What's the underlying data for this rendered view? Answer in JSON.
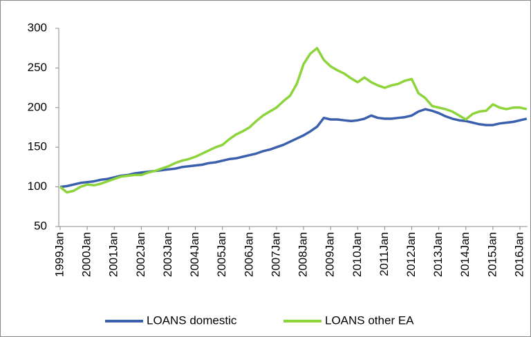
{
  "chart_data": {
    "type": "line",
    "categories": [
      "1999Jan",
      null,
      null,
      null,
      "2000Jan",
      null,
      null,
      null,
      "2001Jan",
      null,
      null,
      null,
      "2002Jan",
      null,
      null,
      null,
      "2003Jan",
      null,
      null,
      null,
      "2004Jan",
      null,
      null,
      null,
      "2005Jan",
      null,
      null,
      null,
      "2006Jan",
      null,
      null,
      null,
      "2007Jan",
      null,
      null,
      null,
      "2008Jan",
      null,
      null,
      null,
      "2009Jan",
      null,
      null,
      null,
      "2010Jan",
      null,
      null,
      null,
      "2011Jan",
      null,
      null,
      null,
      "2012Jan",
      null,
      null,
      null,
      "2013Jan",
      null,
      null,
      null,
      "2014Jan",
      null,
      null,
      null,
      "2015Jan",
      null,
      null,
      null,
      "2016Jan",
      null
    ],
    "series": [
      {
        "name": "LOANS domestic",
        "color": "#3a5fad",
        "values": [
          100,
          101,
          103,
          105,
          106,
          107,
          109,
          110,
          112,
          114,
          115,
          117,
          118,
          119,
          120,
          121,
          122,
          123,
          125,
          126,
          127,
          128,
          130,
          131,
          133,
          135,
          136,
          138,
          140,
          142,
          145,
          147,
          150,
          153,
          157,
          161,
          165,
          170,
          176,
          187,
          185,
          185,
          184,
          183,
          184,
          186,
          190,
          187,
          186,
          186,
          187,
          188,
          190,
          195,
          198,
          196,
          193,
          189,
          186,
          184,
          183,
          181,
          179,
          178,
          178,
          180,
          181,
          182,
          184,
          186
        ]
      },
      {
        "name": "LOANS other EA",
        "color": "#8cd43a",
        "values": [
          100,
          93,
          95,
          100,
          103,
          102,
          104,
          107,
          110,
          113,
          114,
          115,
          115,
          118,
          120,
          123,
          126,
          130,
          133,
          135,
          138,
          142,
          146,
          150,
          153,
          160,
          166,
          170,
          175,
          183,
          190,
          195,
          200,
          208,
          215,
          230,
          255,
          268,
          275,
          260,
          252,
          247,
          243,
          237,
          232,
          238,
          232,
          228,
          225,
          228,
          230,
          234,
          236,
          218,
          212,
          202,
          200,
          198,
          195,
          190,
          185,
          192,
          195,
          196,
          204,
          200,
          198,
          200,
          200,
          198
        ]
      }
    ],
    "ylim": [
      50,
      300
    ],
    "yticks": [
      50,
      100,
      150,
      200,
      250,
      300
    ],
    "grid": false,
    "legend": "bottom"
  }
}
